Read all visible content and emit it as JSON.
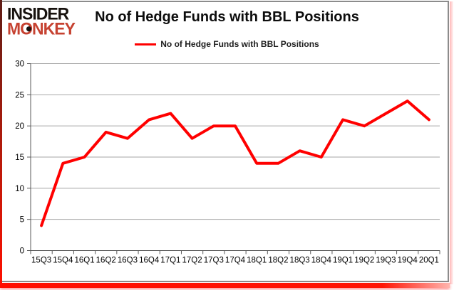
{
  "logo": {
    "line1": "INSIDER",
    "line2": "MONKEY",
    "line1_color": "#17120e",
    "line2_color": "#c64231"
  },
  "title": "No of Hedge Funds with BBL Positions",
  "legend": {
    "label": "No of Hedge Funds with BBL Positions"
  },
  "chart_data": {
    "type": "line",
    "title": "No of Hedge Funds with BBL Positions",
    "categories": [
      "15Q3",
      "15Q4",
      "16Q1",
      "16Q2",
      "16Q3",
      "16Q4",
      "17Q1",
      "17Q2",
      "17Q3",
      "17Q4",
      "18Q1",
      "18Q2",
      "18Q3",
      "18Q4",
      "19Q1",
      "19Q2",
      "19Q3",
      "19Q4",
      "20Q1"
    ],
    "series": [
      {
        "name": "No of Hedge Funds with BBL Positions",
        "color": "#ff0000",
        "values": [
          4,
          14,
          15,
          19,
          18,
          21,
          22,
          18,
          20,
          20,
          14,
          14,
          16,
          15,
          21,
          20,
          22,
          24,
          21
        ]
      }
    ],
    "xlabel": "",
    "ylabel": "",
    "ylim": [
      0,
      30
    ],
    "yticks": [
      0,
      5,
      10,
      15,
      20,
      25,
      30
    ],
    "grid": true,
    "legend_position": "top"
  },
  "colors": {
    "series_line": "#ff0000",
    "gridline": "#a6a6a6",
    "axis": "#595959",
    "tick_label": "#000000",
    "frame_red": "#ff0f00",
    "frame_gray": "#8c8c8c"
  }
}
